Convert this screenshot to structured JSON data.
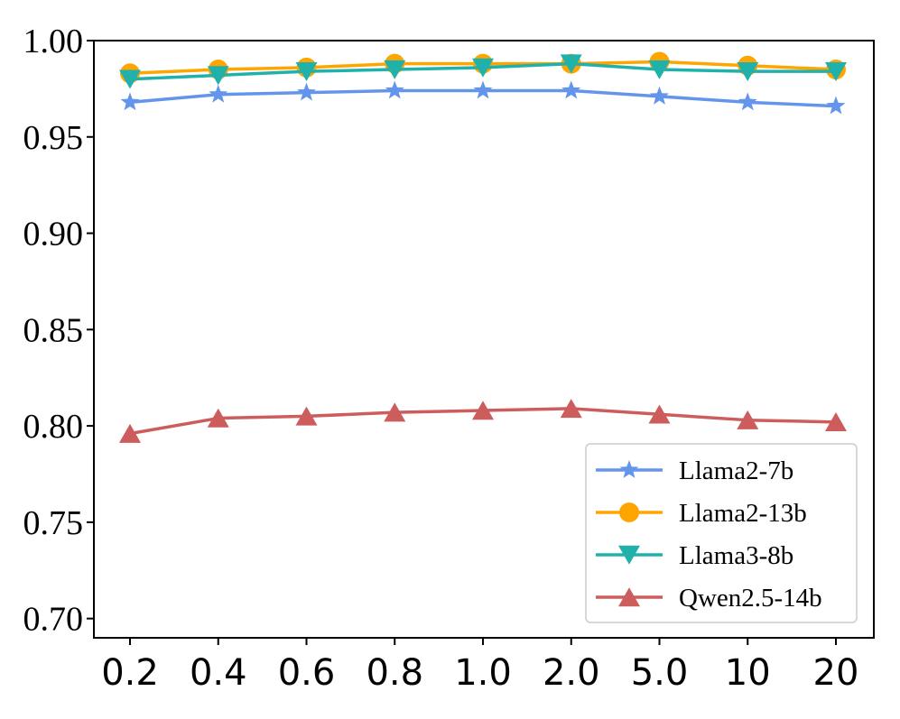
{
  "chart_data": {
    "type": "line",
    "title": "",
    "xlabel": "",
    "ylabel": "",
    "categories": [
      "0.2",
      "0.4",
      "0.6",
      "0.8",
      "1.0",
      "2.0",
      "5.0",
      "10",
      "20"
    ],
    "ylim": [
      0.69,
      1.0
    ],
    "yticks": [
      "0.70",
      "0.75",
      "0.80",
      "0.85",
      "0.90",
      "0.95",
      "1.00"
    ],
    "grid": false,
    "legend_position": "lower-right",
    "series": [
      {
        "name": "Llama2-7b",
        "color": "#6495ED",
        "marker": "star",
        "values": [
          0.968,
          0.972,
          0.973,
          0.974,
          0.974,
          0.974,
          0.971,
          0.968,
          0.966
        ]
      },
      {
        "name": "Llama2-13b",
        "color": "#FFA500",
        "marker": "circle",
        "values": [
          0.983,
          0.985,
          0.986,
          0.988,
          0.988,
          0.988,
          0.989,
          0.987,
          0.985
        ]
      },
      {
        "name": "Llama3-8b",
        "color": "#20B2AA",
        "marker": "triangle-down",
        "values": [
          0.98,
          0.982,
          0.984,
          0.985,
          0.986,
          0.988,
          0.985,
          0.984,
          0.984
        ]
      },
      {
        "name": "Qwen2.5-14b",
        "color": "#CD5C5C",
        "marker": "triangle-up",
        "values": [
          0.796,
          0.804,
          0.805,
          0.807,
          0.808,
          0.809,
          0.806,
          0.803,
          0.802
        ]
      }
    ]
  }
}
